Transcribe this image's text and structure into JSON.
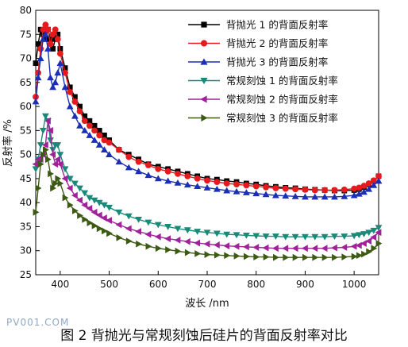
{
  "caption": "图 2 背抛光与常规刻蚀后硅片的背面反射率对比",
  "watermark": "PV001.COM",
  "chart_data": {
    "type": "line",
    "xlabel": "波长 /nm",
    "ylabel": "反射率 /%",
    "xlim": [
      350,
      1050
    ],
    "ylim": [
      25,
      80
    ],
    "xticks": [
      400,
      500,
      600,
      700,
      800,
      900,
      1000
    ],
    "yticks": [
      25,
      30,
      35,
      40,
      45,
      50,
      55,
      60,
      65,
      70,
      75,
      80
    ],
    "grid": false,
    "legend_position": "top-right",
    "series": [
      {
        "name": "背抛光 1 的背面反射率",
        "color": "#000000",
        "marker": "square",
        "x": [
          350,
          355,
          360,
          365,
          370,
          375,
          380,
          385,
          390,
          395,
          400,
          410,
          420,
          430,
          440,
          450,
          460,
          470,
          480,
          490,
          500,
          520,
          540,
          560,
          580,
          600,
          620,
          640,
          660,
          680,
          700,
          720,
          740,
          760,
          780,
          800,
          820,
          840,
          860,
          880,
          900,
          920,
          940,
          960,
          980,
          1000,
          1010,
          1020,
          1030,
          1040,
          1050
        ],
        "y": [
          69,
          73,
          76,
          75,
          74,
          76,
          74,
          72,
          74,
          75,
          72,
          68,
          64,
          62,
          60,
          58,
          57,
          56,
          55,
          54,
          53,
          51,
          50,
          49,
          48,
          47.5,
          47,
          46.5,
          46,
          45.5,
          45,
          44.8,
          44.5,
          44.3,
          44,
          43.8,
          43.5,
          43.3,
          43.1,
          43,
          42.8,
          42.7,
          42.6,
          42.5,
          42.5,
          42.6,
          42.8,
          43.2,
          43.8,
          44.5,
          45.5
        ]
      },
      {
        "name": "背抛光 2 的背面反射率",
        "color": "#e8191c",
        "marker": "circle",
        "x": [
          350,
          355,
          360,
          365,
          370,
          375,
          380,
          385,
          390,
          395,
          400,
          410,
          420,
          430,
          440,
          450,
          460,
          470,
          480,
          490,
          500,
          520,
          540,
          560,
          580,
          600,
          620,
          640,
          660,
          680,
          700,
          720,
          740,
          760,
          780,
          800,
          820,
          840,
          860,
          880,
          900,
          920,
          940,
          960,
          980,
          1000,
          1010,
          1020,
          1030,
          1040,
          1050
        ],
        "y": [
          62,
          67,
          72,
          76,
          77,
          76,
          73,
          75,
          76,
          74,
          71,
          67,
          63,
          61,
          59,
          57,
          56,
          55,
          54,
          53,
          52.5,
          51,
          49.5,
          48.5,
          47.8,
          47,
          46.5,
          46,
          45.5,
          45,
          44.6,
          44.3,
          44,
          43.8,
          43.6,
          43.4,
          43.2,
          43,
          42.9,
          42.8,
          42.7,
          42.6,
          42.6,
          42.6,
          42.7,
          42.9,
          43.1,
          43.5,
          44,
          44.6,
          45.5
        ]
      },
      {
        "name": "背抛光 3 的背面反射率",
        "color": "#1a2fb5",
        "marker": "triangle-up",
        "x": [
          350,
          355,
          360,
          365,
          370,
          375,
          380,
          385,
          390,
          395,
          400,
          410,
          420,
          430,
          440,
          450,
          460,
          470,
          480,
          490,
          500,
          520,
          540,
          560,
          580,
          600,
          620,
          640,
          660,
          680,
          700,
          720,
          740,
          760,
          780,
          800,
          820,
          840,
          860,
          880,
          900,
          920,
          940,
          960,
          980,
          1000,
          1010,
          1020,
          1030,
          1040,
          1050
        ],
        "y": [
          61,
          66,
          70,
          74,
          75,
          72,
          66,
          64,
          65,
          67,
          69,
          64,
          60,
          58,
          56,
          55,
          54,
          53,
          52,
          51,
          50,
          48.5,
          47.3,
          46.5,
          45.7,
          45,
          44.5,
          44.1,
          43.7,
          43.4,
          43.1,
          42.8,
          42.5,
          42.3,
          42.1,
          41.9,
          41.7,
          41.5,
          41.4,
          41.3,
          41.2,
          41.2,
          41.2,
          41.2,
          41.3,
          41.5,
          41.8,
          42.2,
          42.8,
          43.6,
          44.5
        ]
      },
      {
        "name": "常规刻蚀 1 的背面反射率",
        "color": "#1a8a78",
        "marker": "triangle-down",
        "x": [
          350,
          355,
          360,
          365,
          370,
          375,
          380,
          385,
          390,
          395,
          400,
          410,
          420,
          430,
          440,
          450,
          460,
          470,
          480,
          490,
          500,
          520,
          540,
          560,
          580,
          600,
          620,
          640,
          660,
          680,
          700,
          720,
          740,
          760,
          780,
          800,
          820,
          840,
          860,
          880,
          900,
          920,
          940,
          960,
          980,
          1000,
          1010,
          1020,
          1030,
          1040,
          1050
        ],
        "y": [
          47,
          49,
          52,
          55,
          58,
          57,
          53,
          51,
          52,
          52,
          50,
          47,
          45,
          44,
          43,
          42,
          41,
          40.5,
          40,
          39.5,
          39,
          38,
          37.2,
          36.5,
          35.9,
          35.4,
          35,
          34.6,
          34.3,
          34,
          33.8,
          33.6,
          33.4,
          33.3,
          33.2,
          33.1,
          33,
          33,
          32.9,
          32.9,
          32.9,
          32.9,
          32.9,
          33,
          33,
          33.1,
          33.3,
          33.5,
          33.8,
          34.2,
          34.8
        ]
      },
      {
        "name": "常规刻蚀 2 的背面反射率",
        "color": "#a0219a",
        "marker": "triangle-left",
        "x": [
          350,
          355,
          360,
          365,
          370,
          375,
          380,
          385,
          390,
          395,
          400,
          410,
          420,
          430,
          440,
          450,
          460,
          470,
          480,
          490,
          500,
          520,
          540,
          560,
          580,
          600,
          620,
          640,
          660,
          680,
          700,
          720,
          740,
          760,
          780,
          800,
          820,
          840,
          860,
          880,
          900,
          920,
          940,
          960,
          980,
          1000,
          1010,
          1020,
          1030,
          1040,
          1050
        ],
        "y": [
          48,
          49,
          49,
          50,
          52,
          57,
          55,
          50,
          48,
          49,
          48,
          45,
          43,
          41.5,
          40.5,
          39.5,
          38.8,
          38,
          37.4,
          36.8,
          36.3,
          35.4,
          34.6,
          34,
          33.4,
          32.9,
          32.5,
          32.2,
          31.9,
          31.6,
          31.4,
          31.2,
          31,
          30.9,
          30.8,
          30.7,
          30.6,
          30.5,
          30.5,
          30.5,
          30.5,
          30.5,
          30.5,
          30.6,
          30.7,
          30.9,
          31.1,
          31.5,
          32,
          32.8,
          33.8
        ]
      },
      {
        "name": "常规刻蚀 3 的背面反射率",
        "color": "#3d5a14",
        "marker": "triangle-right",
        "x": [
          350,
          355,
          360,
          365,
          370,
          375,
          380,
          385,
          390,
          395,
          400,
          410,
          420,
          430,
          440,
          450,
          460,
          470,
          480,
          490,
          500,
          520,
          540,
          560,
          580,
          600,
          620,
          640,
          660,
          680,
          700,
          720,
          740,
          760,
          780,
          800,
          820,
          840,
          860,
          880,
          900,
          920,
          940,
          960,
          980,
          1000,
          1010,
          1020,
          1030,
          1040,
          1050
        ],
        "y": [
          38,
          43,
          48,
          50,
          51,
          49,
          46,
          43,
          44,
          45,
          44,
          41,
          39.5,
          38.3,
          37.3,
          36.5,
          35.8,
          35.2,
          34.6,
          34.1,
          33.6,
          32.7,
          32,
          31.4,
          30.9,
          30.5,
          30.2,
          29.9,
          29.6,
          29.4,
          29.2,
          29.1,
          29,
          28.9,
          28.8,
          28.7,
          28.7,
          28.6,
          28.6,
          28.6,
          28.6,
          28.6,
          28.6,
          28.6,
          28.7,
          28.8,
          29,
          29.3,
          29.8,
          30.5,
          31.5
        ]
      }
    ]
  }
}
